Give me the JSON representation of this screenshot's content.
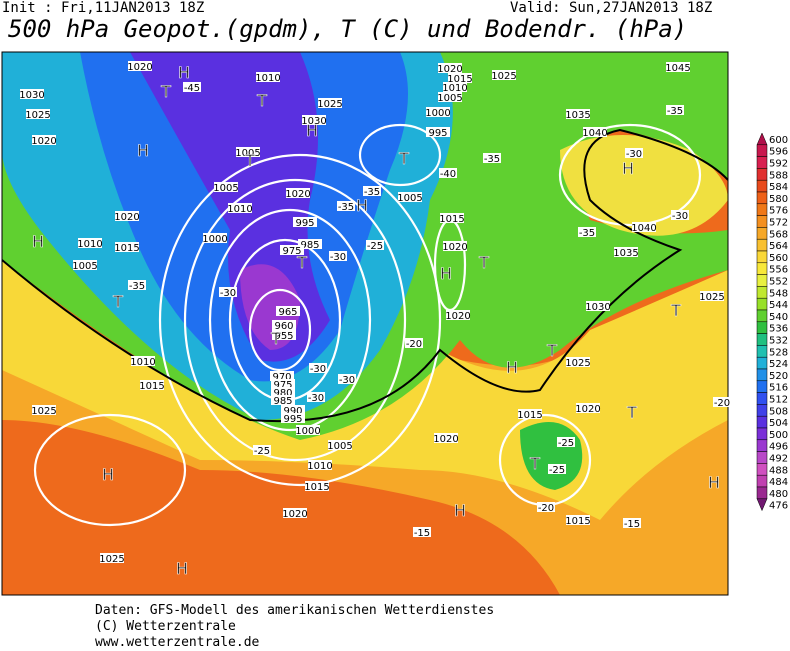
{
  "header": {
    "init": "Init : Fri,11JAN2013 18Z",
    "valid": "Valid: Sun,27JAN2013 18Z",
    "title": "500 hPa Geopot.(gpdm), T (C) und Bodendr. (hPa)"
  },
  "legend": [
    {
      "label": "600",
      "color": "#b0104a"
    },
    {
      "label": "596",
      "color": "#c8184e"
    },
    {
      "label": "592",
      "color": "#d82050"
    },
    {
      "label": "588",
      "color": "#e03030"
    },
    {
      "label": "584",
      "color": "#e84a1c"
    },
    {
      "label": "580",
      "color": "#ee6018"
    },
    {
      "label": "576",
      "color": "#f07818"
    },
    {
      "label": "572",
      "color": "#f49020"
    },
    {
      "label": "568",
      "color": "#f6a828"
    },
    {
      "label": "564",
      "color": "#f8c030"
    },
    {
      "label": "560",
      "color": "#fad838"
    },
    {
      "label": "556",
      "color": "#f8e83a"
    },
    {
      "label": "552",
      "color": "#e8f040"
    },
    {
      "label": "548",
      "color": "#c0e830"
    },
    {
      "label": "544",
      "color": "#98e028"
    },
    {
      "label": "540",
      "color": "#60d030"
    },
    {
      "label": "536",
      "color": "#30c040"
    },
    {
      "label": "532",
      "color": "#20c080"
    },
    {
      "label": "528",
      "color": "#20c0b0"
    },
    {
      "label": "524",
      "color": "#20b0d8"
    },
    {
      "label": "520",
      "color": "#2090e8"
    },
    {
      "label": "516",
      "color": "#2070f0"
    },
    {
      "label": "512",
      "color": "#3050f0"
    },
    {
      "label": "508",
      "color": "#4040e8"
    },
    {
      "label": "504",
      "color": "#5a30e0"
    },
    {
      "label": "500",
      "color": "#7a30d8"
    },
    {
      "label": "496",
      "color": "#9a38d0"
    },
    {
      "label": "492",
      "color": "#b848c8"
    },
    {
      "label": "488",
      "color": "#d050c0"
    },
    {
      "label": "484",
      "color": "#c040b0"
    },
    {
      "label": "480",
      "color": "#9a2890"
    },
    {
      "label": "476",
      "color": "#701870"
    }
  ],
  "pressure_labels": [
    "1020",
    "1010",
    "1030",
    "1025",
    "1020",
    "1025",
    "1030",
    "1005",
    "1005",
    "1010",
    "1020",
    "1020",
    "1010",
    "1015",
    "1005",
    "1000",
    "995",
    "985",
    "975",
    "965",
    "960",
    "955",
    "970",
    "975",
    "980",
    "985",
    "990",
    "995",
    "1000",
    "1005",
    "1010",
    "1015",
    "1020",
    "1025",
    "1025",
    "1015",
    "1010",
    "1020",
    "1015",
    "1010",
    "1005",
    "1000",
    "995",
    "1025",
    "1005",
    "1015",
    "1020",
    "1020",
    "1035",
    "1040",
    "1045",
    "1040",
    "1035",
    "1030",
    "1025",
    "1025",
    "1020",
    "1015",
    "1020",
    "1015"
  ],
  "temperature_labels": [
    "-45",
    "-35",
    "-30",
    "-30",
    "-30",
    "-30",
    "-35",
    "-35",
    "-40",
    "-35",
    "-25",
    "-20",
    "-25",
    "-30",
    "-35",
    "-30",
    "-30",
    "-35",
    "-25",
    "-25",
    "-20",
    "-15",
    "-15",
    "-20"
  ],
  "systems": [
    "H",
    "T",
    "T",
    "H",
    "H",
    "T",
    "H",
    "T",
    "H",
    "T",
    "T",
    "T",
    "H",
    "T",
    "H",
    "T",
    "T",
    "H",
    "H",
    "H",
    "T",
    "H",
    "T",
    "H"
  ],
  "footer": [
    "Daten: GFS-Modell des amerikanischen Wetterdienstes",
    "(C) Wetterzentrale",
    "www.wetterzentrale.de"
  ]
}
